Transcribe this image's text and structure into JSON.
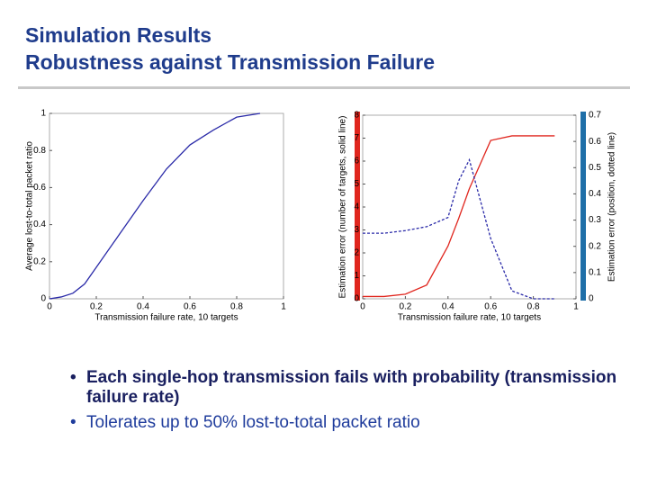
{
  "header": {
    "title": [
      "Simulation Results",
      "Robustness against Transmission Failure"
    ]
  },
  "bullets": [
    "Each single-hop transmission fails with probability (transmission failure rate)",
    "Tolerates up to 50% lost-to-total packet ratio"
  ],
  "chart_data": [
    {
      "type": "line",
      "x": [
        0,
        0.05,
        0.1,
        0.15,
        0.2,
        0.3,
        0.4,
        0.5,
        0.6,
        0.7,
        0.8,
        0.9
      ],
      "series": [
        {
          "name": "Average lost-to-total packet ratio",
          "color": "#2a2aa8",
          "style": "solid",
          "values": [
            0,
            0.01,
            0.03,
            0.08,
            0.17,
            0.35,
            0.53,
            0.7,
            0.83,
            0.91,
            0.98,
            1.0
          ]
        }
      ],
      "xlim": [
        0,
        1
      ],
      "xticks": [
        0,
        0.2,
        0.4,
        0.6,
        0.8,
        1
      ],
      "ylim": [
        0,
        1
      ],
      "yticks": [
        0,
        0.2,
        0.4,
        0.6,
        0.8,
        1
      ],
      "xlabel": "Transmission failure rate, 10 targets",
      "ylabel": "Average lost-to-total packet ratio"
    },
    {
      "type": "line",
      "x": [
        0,
        0.1,
        0.2,
        0.3,
        0.4,
        0.45,
        0.5,
        0.6,
        0.7,
        0.8,
        0.9
      ],
      "series": [
        {
          "name": "number of targets",
          "color": "#e0261e",
          "style": "solid",
          "values": [
            0.1,
            0.1,
            0.2,
            0.6,
            2.3,
            3.5,
            4.8,
            6.9,
            7.1,
            7.1,
            7.1
          ]
        },
        {
          "name": "position",
          "color": "#2a2aa8",
          "style": "dotted",
          "axis": "y2",
          "values": [
            0.25,
            0.25,
            0.26,
            0.275,
            0.31,
            0.45,
            0.53,
            0.23,
            0.03,
            0,
            0
          ]
        }
      ],
      "xlim": [
        0,
        1
      ],
      "xticks": [
        0,
        0.2,
        0.4,
        0.6,
        0.8,
        1
      ],
      "ylim": [
        0,
        8
      ],
      "yticks": [
        0,
        1,
        2,
        3,
        4,
        5,
        6,
        7,
        8
      ],
      "y2lim": [
        0,
        0.7
      ],
      "y2ticks": [
        0,
        0.1,
        0.2,
        0.3,
        0.4,
        0.5,
        0.6,
        0.7
      ],
      "xlabel": "Transmission failure rate, 10 targets",
      "ylabel": "Estimation error (number of targets, solid line)",
      "y2label": "Estimation error (position, dotted line)"
    }
  ]
}
